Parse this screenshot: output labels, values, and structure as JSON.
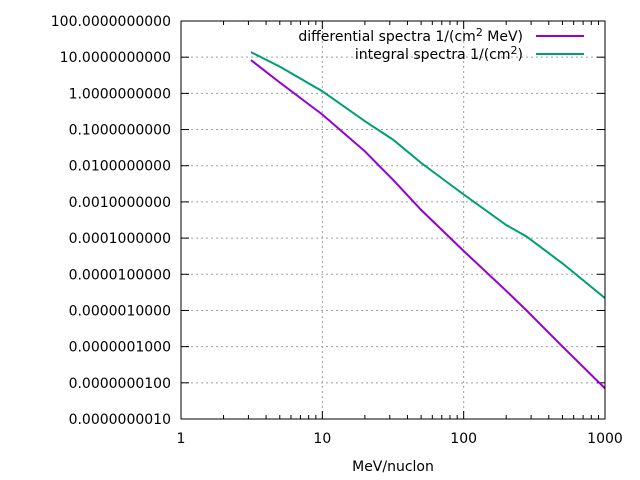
{
  "chart_data": {
    "type": "line",
    "title": "",
    "xlabel": "MeV/nuclon",
    "ylabel": "",
    "xscale": "log",
    "yscale": "log",
    "xlim": [
      1,
      1000
    ],
    "ylim": [
      1e-09,
      100
    ],
    "grid": true,
    "legend_position": "top-right",
    "xticks": [
      {
        "value": 1,
        "label": "1"
      },
      {
        "value": 10,
        "label": "10"
      },
      {
        "value": 100,
        "label": "100"
      },
      {
        "value": 1000,
        "label": "1000"
      }
    ],
    "yticks": [
      {
        "value": 100,
        "label": "100.0000000000"
      },
      {
        "value": 10,
        "label": "10.0000000000"
      },
      {
        "value": 1,
        "label": "1.0000000000"
      },
      {
        "value": 0.1,
        "label": "0.1000000000"
      },
      {
        "value": 0.01,
        "label": "0.0100000000"
      },
      {
        "value": 0.001,
        "label": "0.0010000000"
      },
      {
        "value": 0.0001,
        "label": "0.0001000000"
      },
      {
        "value": 1e-05,
        "label": "0.0000100000"
      },
      {
        "value": 1e-06,
        "label": "0.0000010000"
      },
      {
        "value": 1e-07,
        "label": "0.0000001000"
      },
      {
        "value": 1e-08,
        "label": "0.0000000100"
      },
      {
        "value": 1e-09,
        "label": "0.0000000010"
      }
    ],
    "series": [
      {
        "name": "differential spectra 1/(cm",
        "sup": "2",
        "name_suffix": " MeV)",
        "color": "#9400d3",
        "x": [
          3.13,
          5,
          10,
          20,
          31.8,
          50,
          100,
          200,
          279,
          500,
          1000
        ],
        "y": [
          8.3,
          2.0,
          0.26,
          0.025,
          0.004,
          0.0006,
          4.4e-05,
          3.5e-06,
          1e-06,
          1e-07,
          7e-09
        ]
      },
      {
        "name": "integral spectra 1/(cm",
        "sup": "2",
        "name_suffix": ")",
        "color": "#009e73",
        "x": [
          3.13,
          5,
          10,
          20,
          31.8,
          50,
          100,
          200,
          279,
          500,
          1000
        ],
        "y": [
          13.8,
          5.5,
          1.15,
          0.17,
          0.052,
          0.012,
          0.0016,
          0.00023,
          0.00011,
          2e-05,
          2.2e-06
        ]
      }
    ]
  }
}
